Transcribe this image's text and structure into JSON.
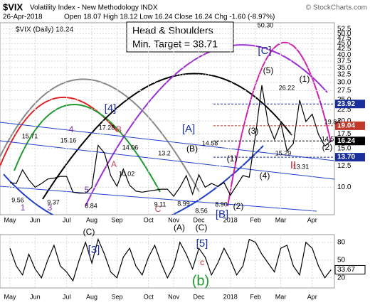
{
  "chart_data": [
    {
      "type": "line",
      "title": "$VIX",
      "subtitle": "Volatility Index - New Methodology INDX",
      "date": "26-Apr-2018",
      "quote": "Open 18.07  High 18.12  Low 16.24  Close 16.24  Chg -1.60 (-8.97%)",
      "credit": "© StockCharts.com",
      "callout": [
        "Head & Shoulders",
        "Min. Target = 38.71"
      ],
      "categories": [
        "May",
        null,
        null,
        null,
        "Jun",
        null,
        null,
        null,
        null,
        "Jul",
        null,
        null,
        null,
        "Aug",
        null,
        null,
        null,
        "Sep",
        null,
        null,
        null,
        null,
        "Oct",
        null,
        null,
        null,
        "Nov",
        null,
        null,
        null,
        "Dec",
        null,
        null,
        null,
        null,
        "2018",
        null,
        null,
        null,
        "Feb",
        null,
        null,
        null,
        "Mar",
        null,
        null,
        null,
        null,
        "Apr",
        null,
        null,
        null
      ],
      "series": [
        {
          "name": "$VIX (Daily) 16.24",
          "color": "#000000",
          "values": [
            10.5,
            10.4,
            12.0,
            10.8,
            10.0,
            10.4,
            10.9,
            11.0,
            11.2,
            11.2,
            9.5,
            9.4,
            9.4,
            10.0,
            15.5,
            14.3,
            11.3,
            10.1,
            12.1,
            10.2,
            9.6,
            9.5,
            9.6,
            9.7,
            9.8,
            9.8,
            9.1,
            10.0,
            11.3,
            9.3,
            11.4,
            10.0,
            10.4,
            10.1,
            10.5,
            9.2,
            10.2,
            11.3,
            11.1,
            17.3,
            29.1,
            19.5,
            16.5,
            19.6,
            14.6,
            15.8,
            24.9,
            19.9,
            21.5,
            17.4,
            15.4,
            16.24
          ]
        }
      ],
      "ylim": [
        7.5,
        56
      ],
      "log_scale": true,
      "grid": true,
      "yticks": [
        {
          "value": 10,
          "label": "10.0"
        },
        12.5,
        {
          "value": 15,
          "label": "15.0"
        },
        17.5,
        {
          "value": 20,
          "label": "20.0"
        },
        22.5,
        {
          "value": 25,
          "label": "25.0"
        },
        27.5,
        {
          "value": 30,
          "label": "30.0"
        },
        32.5,
        {
          "value": 35,
          "label": "35.0"
        },
        37.5,
        {
          "value": 40,
          "label": "40.0"
        },
        42.5,
        {
          "value": 45,
          "label": "45.0"
        },
        47.5,
        {
          "value": 50,
          "label": "50.0"
        },
        52.5
      ],
      "price_labels": [
        {
          "value": 23.92,
          "color": "#1a2f9c"
        },
        {
          "value": 19.04,
          "color": "#c0392b"
        },
        {
          "value": 16.24,
          "color": "#000000"
        },
        {
          "value": 13.7,
          "label": "13.70",
          "color": "#1a2f9c"
        }
      ],
      "peak_labels": [
        9.56,
        15.71,
        9.37,
        15.16,
        8.84,
        17.28,
        10.02,
        14.06,
        13.2,
        9.11,
        8.99,
        14.58,
        8.56,
        {
          "value": 8.9,
          "label": "8.90"
        },
        {
          "value": 50.3,
          "label": "50.30"
        },
        26.22,
        15.29,
        13.31,
        19.84,
        14.57
      ],
      "wave_labels": [
        {
          "text": "1",
          "color": "#7030a0"
        },
        {
          "text": "3",
          "color": "#7030a0"
        },
        {
          "text": "4",
          "color": "#7030a0"
        },
        {
          "text": "5",
          "color": "#7030a0"
        },
        {
          "text": "[4]",
          "color": "#1a2f9c"
        },
        {
          "text": "B",
          "color": "#c05060"
        },
        {
          "text": "A",
          "color": "#c05060"
        },
        {
          "text": "C",
          "color": "#c05060"
        },
        {
          "text": "(B)",
          "color": "#000000"
        },
        {
          "text": "[A]",
          "color": "#1a2f9c"
        },
        {
          "text": "(A)",
          "color": "#000000"
        },
        {
          "text": "(C)",
          "color": "#000000"
        },
        {
          "text": "[B]",
          "color": "#1a2f9c"
        },
        {
          "text": "(2)",
          "color": "#000000"
        },
        {
          "text": "(1)",
          "color": "#000000"
        },
        {
          "text": "(3)",
          "color": "#000000"
        },
        {
          "text": "(4)",
          "color": "#000000"
        },
        {
          "text": "[C]",
          "color": "#1a2f9c"
        },
        {
          "text": "(5)",
          "color": "#000000"
        },
        {
          "text": "(1)",
          "color": "#000000"
        },
        {
          "text": "II",
          "color": "#d0202a"
        },
        {
          "text": "(2)",
          "color": "#000000"
        }
      ]
    },
    {
      "type": "line",
      "categories": [
        "May",
        null,
        null,
        null,
        "Jun",
        null,
        null,
        null,
        null,
        "Jul",
        null,
        null,
        null,
        "Aug",
        null,
        null,
        null,
        "Sep",
        null,
        null,
        null,
        null,
        "Oct",
        null,
        null,
        null,
        "Nov",
        null,
        null,
        null,
        "Dec",
        null,
        null,
        null,
        null,
        "2018",
        null,
        null,
        null,
        "Feb",
        null,
        null,
        null,
        "Mar",
        null,
        null,
        null,
        null,
        "Apr",
        null,
        null,
        null
      ],
      "series": [
        {
          "color": "#000000",
          "values": [
            70,
            40,
            25,
            60,
            35,
            20,
            50,
            75,
            40,
            30,
            15,
            50,
            80,
            45,
            85,
            60,
            30,
            20,
            55,
            70,
            40,
            25,
            55,
            75,
            45,
            20,
            40,
            80,
            60,
            35,
            70,
            55,
            25,
            45,
            70,
            50,
            25,
            40,
            85,
            80,
            60,
            45,
            30,
            70,
            75,
            40,
            25,
            80,
            70,
            40,
            20,
            33.67
          ]
        }
      ],
      "ylim": [
        3,
        93
      ],
      "yticks": [
        20,
        50,
        80
      ],
      "grid": true,
      "wave_labels": [
        {
          "text": "(C)",
          "color": "#000000"
        },
        {
          "text": "[3]",
          "color": "#1a2f9c"
        },
        {
          "text": "[5]",
          "color": "#1a2f9c"
        },
        {
          "text": "c",
          "color": "#d0202a"
        },
        {
          "text": "(b)",
          "color": "#1f9a2f"
        }
      ]
    }
  ]
}
